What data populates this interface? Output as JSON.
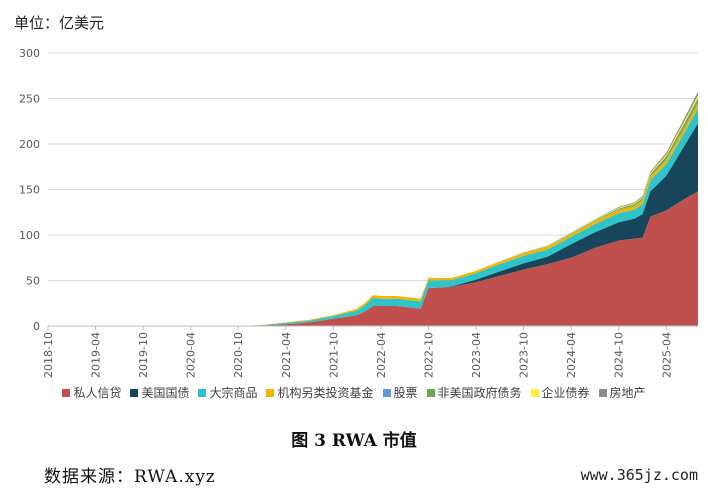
{
  "header": {
    "unit_label": "单位：亿美元"
  },
  "caption": "图 3 RWA 市值",
  "source": "数据来源：RWA.xyz",
  "watermark": "www.365jz.com",
  "chart_data": {
    "type": "area",
    "stacked": true,
    "grid": true,
    "legend_position": "bottom",
    "ylim": [
      0,
      300
    ],
    "yticks": [
      0,
      50,
      100,
      150,
      200,
      250,
      300
    ],
    "xlim": [
      "2018-10",
      "2025-08"
    ],
    "xticks": [
      "2018-10",
      "2019-04",
      "2019-10",
      "2020-04",
      "2020-10",
      "2021-04",
      "2021-10",
      "2022-04",
      "2022-10",
      "2023-04",
      "2023-10",
      "2024-04",
      "2024-10",
      "2025-04"
    ],
    "x": [
      "2020-10",
      "2021-01",
      "2021-04",
      "2021-07",
      "2021-10",
      "2022-01",
      "2022-02",
      "2022-03",
      "2022-04",
      "2022-06",
      "2022-08",
      "2022-09",
      "2022-10",
      "2022-11",
      "2023-01",
      "2023-04",
      "2023-07",
      "2023-10",
      "2024-01",
      "2024-04",
      "2024-07",
      "2024-10",
      "2024-12",
      "2025-01",
      "2025-02",
      "2025-04",
      "2025-06",
      "2025-08"
    ],
    "series": [
      {
        "name": "私人信贷",
        "color": "#c0504d",
        "values": [
          0,
          0.5,
          2,
          4,
          8,
          12,
          16,
          22,
          22,
          22,
          20,
          19,
          42,
          42,
          43,
          48,
          55,
          62,
          68,
          75,
          86,
          94,
          96,
          97,
          120,
          127,
          138,
          148
        ]
      },
      {
        "name": "美国国债",
        "color": "#17455c",
        "values": [
          0,
          0,
          0,
          0,
          0,
          0,
          0,
          0,
          0,
          0,
          0,
          0,
          0,
          0.1,
          0.5,
          3,
          5,
          7,
          8,
          15,
          17,
          20,
          22,
          26,
          28,
          38,
          56,
          75
        ]
      },
      {
        "name": "大宗商品",
        "color": "#2ec4c9",
        "values": [
          0,
          0.5,
          1.5,
          2,
          3,
          5,
          7,
          9,
          8,
          8,
          8,
          8,
          8,
          8,
          7,
          7,
          8,
          8,
          8,
          8,
          9,
          10,
          10,
          11,
          12,
          13,
          14,
          16
        ]
      },
      {
        "name": "机构另类投资基金",
        "color": "#f4b400",
        "values": [
          0,
          0.2,
          0.5,
          0.8,
          1,
          2,
          2.5,
          3,
          3,
          3,
          3,
          3,
          3,
          2.5,
          2.5,
          2.5,
          2.5,
          3,
          3,
          3,
          3,
          3.5,
          4,
          4,
          4,
          4.5,
          5,
          5.5
        ]
      },
      {
        "name": "股票",
        "color": "#5b9bd5",
        "values": [
          0,
          0,
          0,
          0,
          0,
          0,
          0,
          0,
          0,
          0,
          0,
          0,
          0,
          0,
          0,
          0,
          0,
          0,
          0.2,
          0.3,
          0.4,
          0.5,
          0.5,
          0.6,
          0.8,
          1,
          1.5,
          2
        ]
      },
      {
        "name": "非美国政府债务",
        "color": "#6aa84f",
        "values": [
          0,
          0,
          0,
          0,
          0,
          0,
          0,
          0,
          0,
          0,
          0,
          0,
          0,
          0,
          0,
          0,
          0.2,
          0.3,
          0.5,
          0.6,
          0.8,
          1,
          1.5,
          2,
          2,
          3,
          3.5,
          4
        ]
      },
      {
        "name": "企业债券",
        "color": "#ffef3a",
        "values": [
          0,
          0,
          0,
          0,
          0,
          0,
          0,
          0,
          0,
          0,
          0,
          0,
          0,
          0,
          0,
          0,
          0.2,
          0.3,
          0.5,
          0.5,
          0.8,
          1,
          1,
          1.2,
          1.5,
          2,
          2.5,
          3
        ]
      },
      {
        "name": "房地产",
        "color": "#8c8c8c",
        "values": [
          0,
          0,
          0,
          0,
          0,
          0,
          0,
          0,
          0,
          0,
          0,
          0,
          0,
          0,
          0,
          0,
          0.2,
          0.3,
          0.3,
          0.4,
          0.5,
          0.8,
          1,
          1.2,
          1.5,
          2,
          3,
          4
        ]
      }
    ]
  }
}
